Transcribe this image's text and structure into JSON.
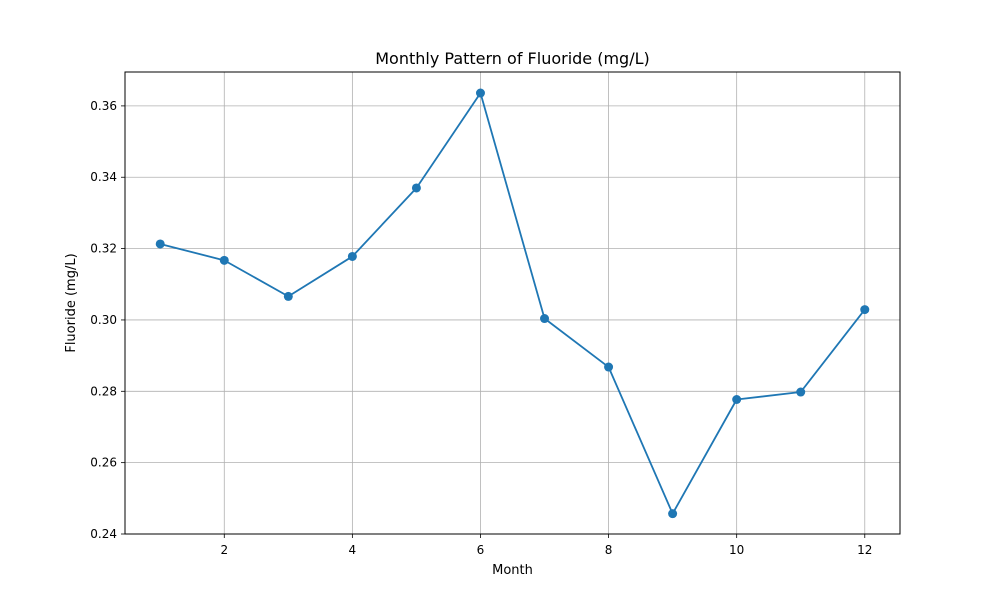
{
  "chart_data": {
    "type": "line",
    "title": "Monthly Pattern of Fluoride (mg/L)",
    "xlabel": "Month",
    "ylabel": "Fluoride (mg/L)",
    "x": [
      1,
      2,
      3,
      4,
      5,
      6,
      7,
      8,
      9,
      10,
      11,
      12
    ],
    "series": [
      {
        "values": [
          0.3213,
          0.3167,
          0.3066,
          0.3178,
          0.337,
          0.3636,
          0.3004,
          0.2868,
          0.2457,
          0.2777,
          0.2798,
          0.3029
        ],
        "color": "#1f77b4",
        "marker": "circle"
      }
    ],
    "xlim": [
      0.45,
      12.55
    ],
    "ylim": [
      0.24,
      0.3695
    ],
    "xticks": [
      2,
      4,
      6,
      8,
      10,
      12
    ],
    "xtick_labels": [
      "2",
      "4",
      "6",
      "8",
      "10",
      "12"
    ],
    "yticks": [
      0.24,
      0.26,
      0.28,
      0.3,
      0.32,
      0.34,
      0.36
    ],
    "ytick_labels": [
      "0.24",
      "0.26",
      "0.28",
      "0.30",
      "0.32",
      "0.34",
      "0.36"
    ],
    "grid": true
  }
}
